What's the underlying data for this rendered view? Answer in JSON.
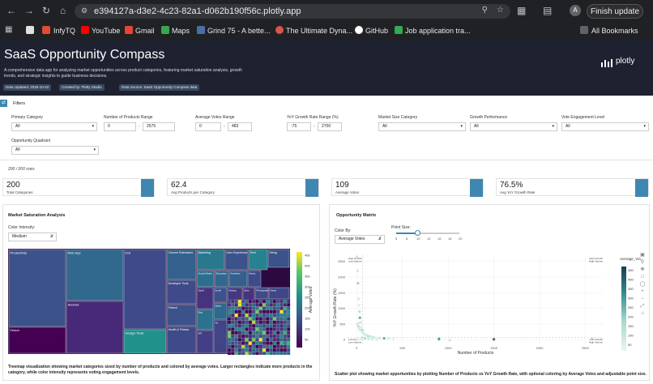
{
  "browser": {
    "url": "e394127a-d3e2-4c23-82a1-d062b190f56c.plotly.app",
    "finish_update": "Finish update",
    "avatar": "A",
    "bookmarks": [
      "InfyTQ",
      "YouTube",
      "Gmail",
      "Maps",
      "Grind 75 - A bette...",
      "The Ultimate Dyna...",
      "GitHub",
      "Job application tra..."
    ],
    "all_bookmarks": "All Bookmarks"
  },
  "header": {
    "title": "SaaS Opportunity Compass",
    "description": "A comprehensive data app for analyzing market opportunities across product categories, featuring market saturation analysis, growth trends, and strategic insights to guide business decisions.",
    "badges": [
      "Data Updated: 2025-10-22",
      "Created by: Plotly Studio",
      "Data Source: SaaS Opportunity Compass data"
    ],
    "logo": "plotly"
  },
  "filters": {
    "title": "Filters",
    "primary_category": {
      "label": "Primary Category",
      "value": "All"
    },
    "products_range": {
      "label": "Number of Products Range",
      "min": "0",
      "max": "2575"
    },
    "votes_range": {
      "label": "Average Votes Range",
      "min": "0",
      "max": "483"
    },
    "yoy_range": {
      "label": "YoY Growth Rate Range (%)",
      "min": "-75",
      "max": "2700"
    },
    "market_size": {
      "label": "Market Size Category",
      "value": "All"
    },
    "growth_perf": {
      "label": "Growth Performance",
      "value": "All"
    },
    "vote_engagement": {
      "label": "Vote Engagement Level",
      "value": "All"
    },
    "quadrant": {
      "label": "Opportunity Quadrant",
      "value": "All"
    },
    "rows": "200 / 200 rows"
  },
  "kpis": [
    {
      "value": "200",
      "label": "Total Categories"
    },
    {
      "value": "62.4",
      "label": "Avg Products per Category"
    },
    {
      "value": "109",
      "label": "Average Votes"
    },
    {
      "value": "76.5%",
      "label": "Avg YoY Growth Rate"
    }
  ],
  "treemap": {
    "title": "Market Saturation Analysis",
    "intensity_label": "Color Intensity:",
    "intensity_value": "Medium",
    "colorbar_label": "Average Votes",
    "colorbar_ticks": [
      "450",
      "400",
      "350",
      "300",
      "250",
      "200",
      "150",
      "100",
      "50"
    ],
    "tiles": [
      "Productivity",
      "Web App",
      "iOS",
      "Chrome Extensions",
      "Marketing",
      "User Experience",
      "Tech",
      "Hiring",
      "Android",
      "Design Tools",
      "Developer Tools",
      "Social Media",
      "Education",
      "Fintech",
      "Analytics",
      "Music",
      "SaaS",
      "Mac",
      "Health & Fitness",
      "API",
      "Fintech",
      "Email",
      "Writing",
      "Sales",
      "Bots",
      "Photography",
      "News",
      "Art"
    ],
    "caption": "Treemap visualization showing market categories sized by number of products and colored by average votes. Larger rectangles indicate more products in the category, while color intensity represents voting engagement levels."
  },
  "matrix": {
    "title": "Opportunity Matrix",
    "color_by_label": "Color By:",
    "color_by_value": "Average Votes",
    "point_size_label": "Point Size:",
    "point_size_ticks": [
      "5",
      "8",
      "10",
      "12",
      "15",
      "18",
      "20"
    ],
    "colorbar_title": "Average_Vot...",
    "colorbar_ticks": [
      "450",
      "400",
      "350",
      "300",
      "250",
      "200",
      "150",
      "100",
      "50"
    ],
    "quadrant_labels": [
      "High Growth Low Volume",
      "High Growth High Volume",
      "Low Growth Low Volume",
      "Low Growth High Volume"
    ],
    "caption": "Scatter plot showing market opportunities by plotting Number of Products vs YoY Growth Rate, with optional coloring by Average Votes and adjustable point size."
  },
  "chart_data": {
    "type": "scatter",
    "xlabel": "Number of Products",
    "ylabel": "YoY Growth Rate (%)",
    "xticks": [
      "0",
      "500",
      "1000",
      "1500",
      "2000",
      "2500"
    ],
    "yticks": [
      "0",
      "500",
      "1000",
      "1500",
      "2000",
      "2500"
    ],
    "xlim": [
      -100,
      2700
    ],
    "ylim": [
      -150,
      2700
    ],
    "x": [
      5,
      10,
      15,
      20,
      25,
      30,
      35,
      40,
      50,
      60,
      70,
      80,
      100,
      120,
      150,
      180,
      200,
      250,
      300,
      350,
      400,
      10,
      20,
      30,
      40,
      60,
      80,
      110,
      15,
      25,
      45,
      900,
      1020,
      1500,
      2575,
      60,
      90,
      130,
      170,
      220
    ],
    "y": [
      2650,
      2200,
      1800,
      1300,
      1100,
      900,
      700,
      550,
      400,
      300,
      250,
      200,
      150,
      120,
      100,
      80,
      60,
      50,
      40,
      30,
      20,
      500,
      420,
      350,
      300,
      250,
      180,
      140,
      10,
      5,
      0,
      20,
      -20,
      10,
      15,
      60,
      40,
      30,
      10,
      5
    ],
    "color": [
      120,
      80,
      200,
      90,
      60,
      150,
      300,
      110,
      70,
      250,
      130,
      90,
      180,
      220,
      100,
      140,
      60,
      90,
      300,
      80,
      40,
      120,
      160,
      90,
      110,
      80,
      70,
      60,
      50,
      40,
      30,
      350,
      90,
      460,
      200,
      120,
      180,
      100,
      90,
      60
    ]
  },
  "colors": {
    "accent": "#3e87b0",
    "header": "#1e2130",
    "scatter_colorscale": [
      "#1a3e4e",
      "#2d8a8a",
      "#a8d9c9",
      "#e8f6f0"
    ]
  }
}
